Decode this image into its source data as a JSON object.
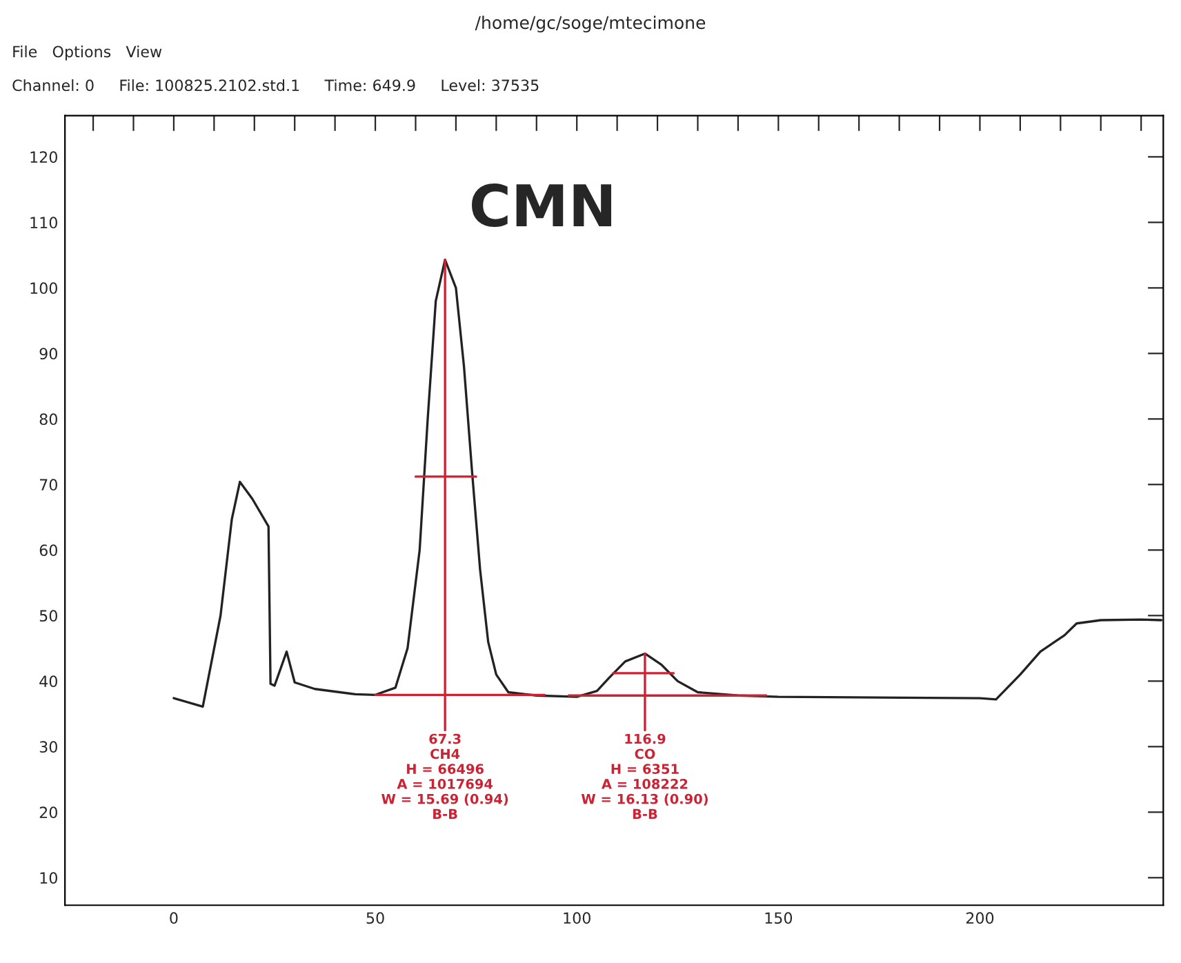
{
  "chart_data": {
    "type": "line",
    "title": "CMN",
    "x": [
      0,
      7.2,
      11.6,
      14.4,
      16.4,
      19.5,
      23.5,
      24,
      25,
      28,
      30,
      35,
      45,
      50,
      55,
      58,
      61,
      63,
      65,
      67.3,
      70,
      72,
      74,
      76,
      78,
      80,
      83,
      90,
      100,
      105,
      108,
      112,
      116.9,
      121,
      125,
      130,
      140,
      150,
      200,
      204,
      210,
      215,
      221,
      224,
      230,
      240,
      245
    ],
    "series": [
      {
        "color": "#222222",
        "values": [
          37.4,
          36.1,
          50,
          64.7,
          70.4,
          67.8,
          63.6,
          39.6,
          39.3,
          44.5,
          39.8,
          38.8,
          38.0,
          37.9,
          39,
          45,
          60,
          80,
          98,
          104.3,
          100,
          88,
          72,
          57,
          46,
          41,
          38.3,
          37.8,
          37.6,
          38.5,
          40.5,
          43,
          44.2,
          42.5,
          40,
          38.3,
          37.8,
          37.6,
          37.4,
          37.2,
          41,
          44.5,
          47,
          48.8,
          49.3,
          49.4,
          49.3
        ]
      },
      {
        "type": "line",
        "color": "#cc2233",
        "x": [
          50,
          92
        ],
        "values": [
          37.9,
          37.9
        ]
      },
      {
        "type": "line",
        "color": "#cc2233",
        "x": [
          67.3,
          67.3
        ],
        "values": [
          32.5,
          104.3
        ]
      },
      {
        "type": "line",
        "color": "#cc2233",
        "x": [
          60,
          75
        ],
        "values": [
          71.2,
          71.2
        ]
      },
      {
        "type": "line",
        "color": "#cc2233",
        "x": [
          98,
          147
        ],
        "values": [
          37.8,
          37.8
        ]
      },
      {
        "type": "line",
        "color": "#cc2233",
        "x": [
          116.9,
          116.9
        ],
        "values": [
          32.5,
          44.2
        ]
      },
      {
        "type": "line",
        "color": "#cc2233",
        "x": [
          109,
          124
        ],
        "values": [
          41.2,
          41.2
        ]
      }
    ],
    "xlim": [
      -27,
      245.5
    ],
    "ylim": [
      5.8,
      126.3
    ],
    "xticks": [
      {
        "value": -20,
        "label": null
      },
      {
        "value": -10,
        "label": null
      },
      0,
      {
        "value": 10,
        "label": null
      },
      {
        "value": 20,
        "label": null
      },
      {
        "value": 30,
        "label": null
      },
      {
        "value": 40,
        "label": null
      },
      50,
      {
        "value": 60,
        "label": null
      },
      {
        "value": 70,
        "label": null
      },
      {
        "value": 80,
        "label": null
      },
      {
        "value": 90,
        "label": null
      },
      100,
      {
        "value": 110,
        "label": null
      },
      {
        "value": 120,
        "label": null
      },
      {
        "value": 130,
        "label": null
      },
      {
        "value": 140,
        "label": null
      },
      150,
      {
        "value": 160,
        "label": null
      },
      {
        "value": 170,
        "label": null
      },
      {
        "value": 180,
        "label": null
      },
      {
        "value": 190,
        "label": null
      },
      200,
      {
        "value": 210,
        "label": null
      },
      {
        "value": 220,
        "label": null
      },
      {
        "value": 230,
        "label": null
      },
      {
        "value": 240,
        "label": null
      }
    ],
    "yticks": [
      10,
      20,
      30,
      40,
      50,
      60,
      70,
      80,
      90,
      100,
      110,
      120
    ],
    "grid": false,
    "legend": false,
    "annotations": [
      "/home/gc/soge/mtecimone",
      "File   Options   View",
      "Channel: 0",
      "File: 100825.2102.std.1",
      "Time: 649.9",
      "Level: 37535",
      {
        "text": "67.3\nCH4\nH = 66496\nA = 1017694\nW = 15.69 (0.94)\nB-B",
        "x": 67.3,
        "y": 32
      },
      {
        "text": "116.9\nCO\nH = 6351\nA = 108222\nW = 16.13 (0.90)\nB-B",
        "x": 116.9,
        "y": 32
      }
    ]
  }
}
